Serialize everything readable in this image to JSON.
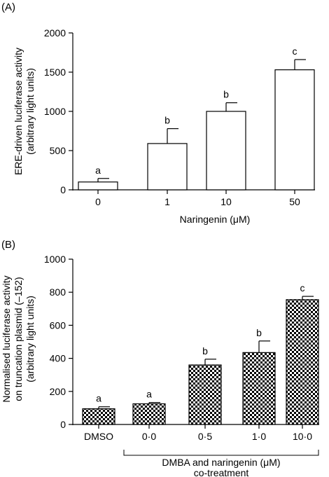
{
  "chart_data": [
    {
      "panel": "(A)",
      "type": "bar",
      "categories": [
        "0",
        "1",
        "10",
        "50"
      ],
      "values": [
        100,
        590,
        1000,
        1530
      ],
      "errors": [
        45,
        190,
        110,
        130
      ],
      "significance": [
        "a",
        "b",
        "b",
        "c"
      ],
      "xlabel": "Naringenin (μM)",
      "ylabel": [
        "ERE-driven luciferase activity",
        "(arbitrary light units)"
      ],
      "ylim": [
        0,
        2000
      ],
      "yticks": [
        "0",
        "500",
        "1000",
        "1500",
        "2000"
      ],
      "bar_fill": "#ffffff"
    },
    {
      "panel": "(B)",
      "type": "bar",
      "categories": [
        "DMSO",
        "0·0",
        "0·5",
        "1·0",
        "10·0"
      ],
      "values": [
        95,
        125,
        360,
        435,
        755
      ],
      "errors": [
        12,
        8,
        35,
        70,
        20
      ],
      "significance": [
        "a",
        "a",
        "b",
        "b",
        "c"
      ],
      "xlabel": [
        "DMBA and naringenin (μM)",
        "co-treatment"
      ],
      "ylabel": [
        "Normalised luciferase activity",
        "on truncation plasmid (–152)",
        "(arbitrary light units)"
      ],
      "ylim": [
        0,
        1000
      ],
      "yticks": [
        "0",
        "200",
        "400",
        "600",
        "800",
        "1000"
      ],
      "bar_fill": "checkerboard"
    }
  ]
}
